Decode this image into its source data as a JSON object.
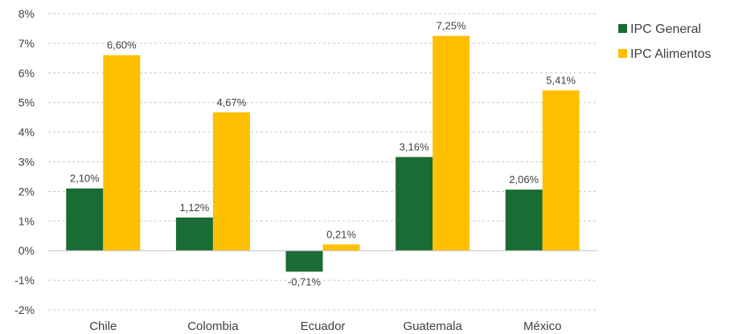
{
  "chart_data": {
    "type": "bar",
    "categories": [
      "Chile",
      "Colombia",
      "Ecuador",
      "Guatemala",
      "México"
    ],
    "series": [
      {
        "name": "IPC General",
        "values": [
          2.1,
          1.12,
          -0.71,
          3.16,
          2.06
        ],
        "color": "#1a6b34"
      },
      {
        "name": "IPC Alimentos",
        "values": [
          6.6,
          4.67,
          0.21,
          7.25,
          5.41
        ],
        "color": "#ffc000"
      }
    ],
    "data_labels": [
      [
        "2,10%",
        "1,12%",
        "-0,71%",
        "3,16%",
        "2,06%"
      ],
      [
        "6,60%",
        "4,67%",
        "0,21%",
        "7,25%",
        "5,41%"
      ]
    ],
    "y_ticks": [
      8,
      7,
      6,
      5,
      4,
      3,
      2,
      1,
      0,
      -1,
      -2
    ],
    "y_tick_labels": [
      "8%",
      "7%",
      "6%",
      "5%",
      "4%",
      "3%",
      "2%",
      "1%",
      "0%",
      "-1%",
      "-2%"
    ],
    "ylim": [
      -2,
      8
    ],
    "grid": true,
    "legend_position": "right",
    "title": "",
    "xlabel": "",
    "ylabel": ""
  }
}
